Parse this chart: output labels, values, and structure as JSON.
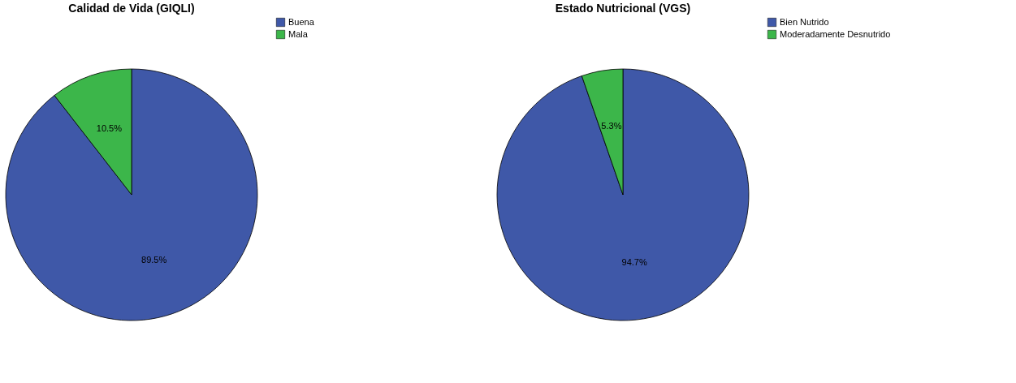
{
  "chart_data": [
    {
      "type": "pie",
      "title": "Calidad de Vida (GIQLI)",
      "categories": [
        "Buena",
        "Mala"
      ],
      "values": [
        89.5,
        10.5
      ],
      "colors": [
        "#3f58a8",
        "#3cb64a"
      ],
      "value_labels": [
        "89.5%",
        "10.5%"
      ],
      "legend": "top right"
    },
    {
      "type": "pie",
      "title": "Estado Nutricional (VGS)",
      "categories": [
        "Bien Nutrido",
        "Moderadamente Desnutrido"
      ],
      "values": [
        94.7,
        5.3
      ],
      "colors": [
        "#3f58a8",
        "#3cb64a"
      ],
      "value_labels": [
        "94.7%",
        "5.3%"
      ],
      "legend": "top right"
    }
  ]
}
